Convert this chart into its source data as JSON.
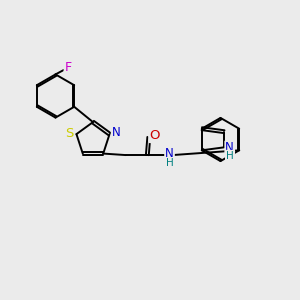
{
  "background_color": "#ebebeb",
  "atom_colors": {
    "C": "#000000",
    "N": "#0000cc",
    "O": "#cc0000",
    "S": "#cccc00",
    "F": "#cc00cc",
    "H": "#008080"
  },
  "bond_color": "#000000",
  "bond_width": 1.4,
  "font_size": 8.5,
  "figsize": [
    3.0,
    3.0
  ],
  "dpi": 100
}
